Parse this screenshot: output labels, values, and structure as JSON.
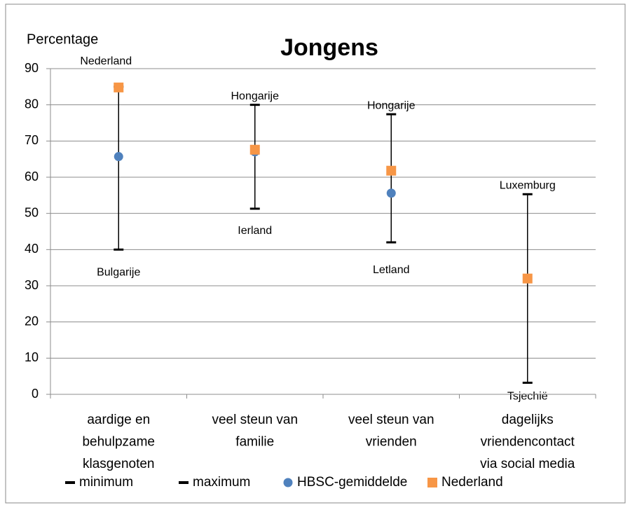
{
  "chart_data": {
    "type": "highlow",
    "title": "Jongens",
    "y_label": "Percentage",
    "categories": [
      [
        "aardige en",
        "behulpzame",
        "klasgenoten"
      ],
      [
        "veel steun van",
        "familie"
      ],
      [
        "veel steun van",
        "vrienden"
      ],
      [
        "dagelijks",
        "vriendencontact",
        "via social media"
      ]
    ],
    "series": [
      {
        "name": "minimum",
        "color": "#000000",
        "marker": "dash",
        "values": [
          40,
          51.3,
          42,
          3.2
        ]
      },
      {
        "name": "maximum",
        "color": "#000000",
        "marker": "dash",
        "values": [
          85,
          80,
          77.4,
          55.3
        ]
      },
      {
        "name": "HBSC-gemiddelde",
        "color": "#4f81bd",
        "marker": "circle",
        "values": [
          65.7,
          67,
          55.6,
          null
        ]
      },
      {
        "name": "Nederland",
        "color": "#f79646",
        "marker": "square",
        "values": [
          84.8,
          67.6,
          61.8,
          32
        ]
      }
    ],
    "max_labels": [
      "Nederland",
      "Hongarije",
      "Hongarije",
      "Luxemburg"
    ],
    "min_labels": [
      "Bulgarije",
      "Ierland",
      "Letland",
      "Tsjechië"
    ],
    "ylim": [
      0,
      90
    ],
    "yticks": [
      0,
      10,
      20,
      30,
      40,
      50,
      60,
      70,
      80,
      90
    ],
    "grid": true,
    "legend": "bottom"
  }
}
